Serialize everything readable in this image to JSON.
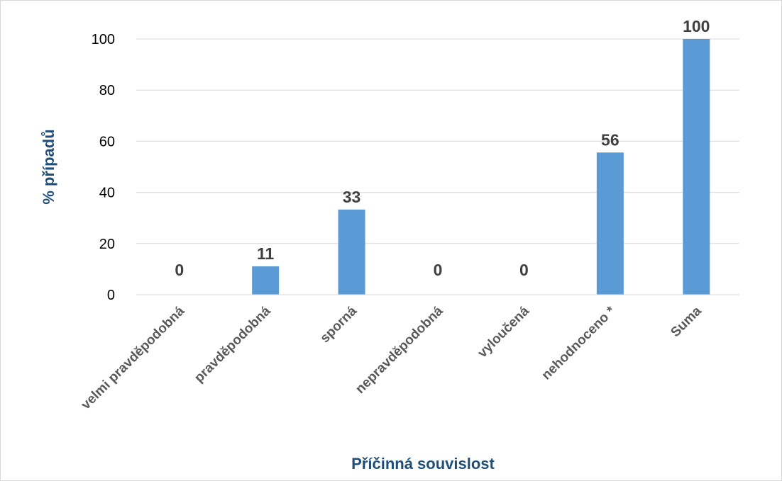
{
  "chart_data": {
    "type": "bar",
    "categories": [
      "velmi pravděpodobná",
      "pravděpodobná",
      "sporná",
      "nepravděpodobná",
      "vyloučená",
      "nehodnoceno *",
      "Suma"
    ],
    "values": [
      0,
      11,
      33,
      0,
      0,
      56,
      100
    ],
    "data_labels": [
      "0",
      "11",
      "33",
      "0",
      "0",
      "56",
      "100"
    ],
    "bar_values_exact": [
      0,
      11.1,
      33.3,
      0,
      0,
      55.6,
      100
    ],
    "xlabel": "Příčinná souvislost",
    "ylabel": "% případů",
    "ylim": [
      0,
      100
    ],
    "yticks": [
      0,
      20,
      40,
      60,
      80,
      100
    ],
    "grid": true,
    "legend": "none",
    "bar_color": "#5b9bd5"
  }
}
